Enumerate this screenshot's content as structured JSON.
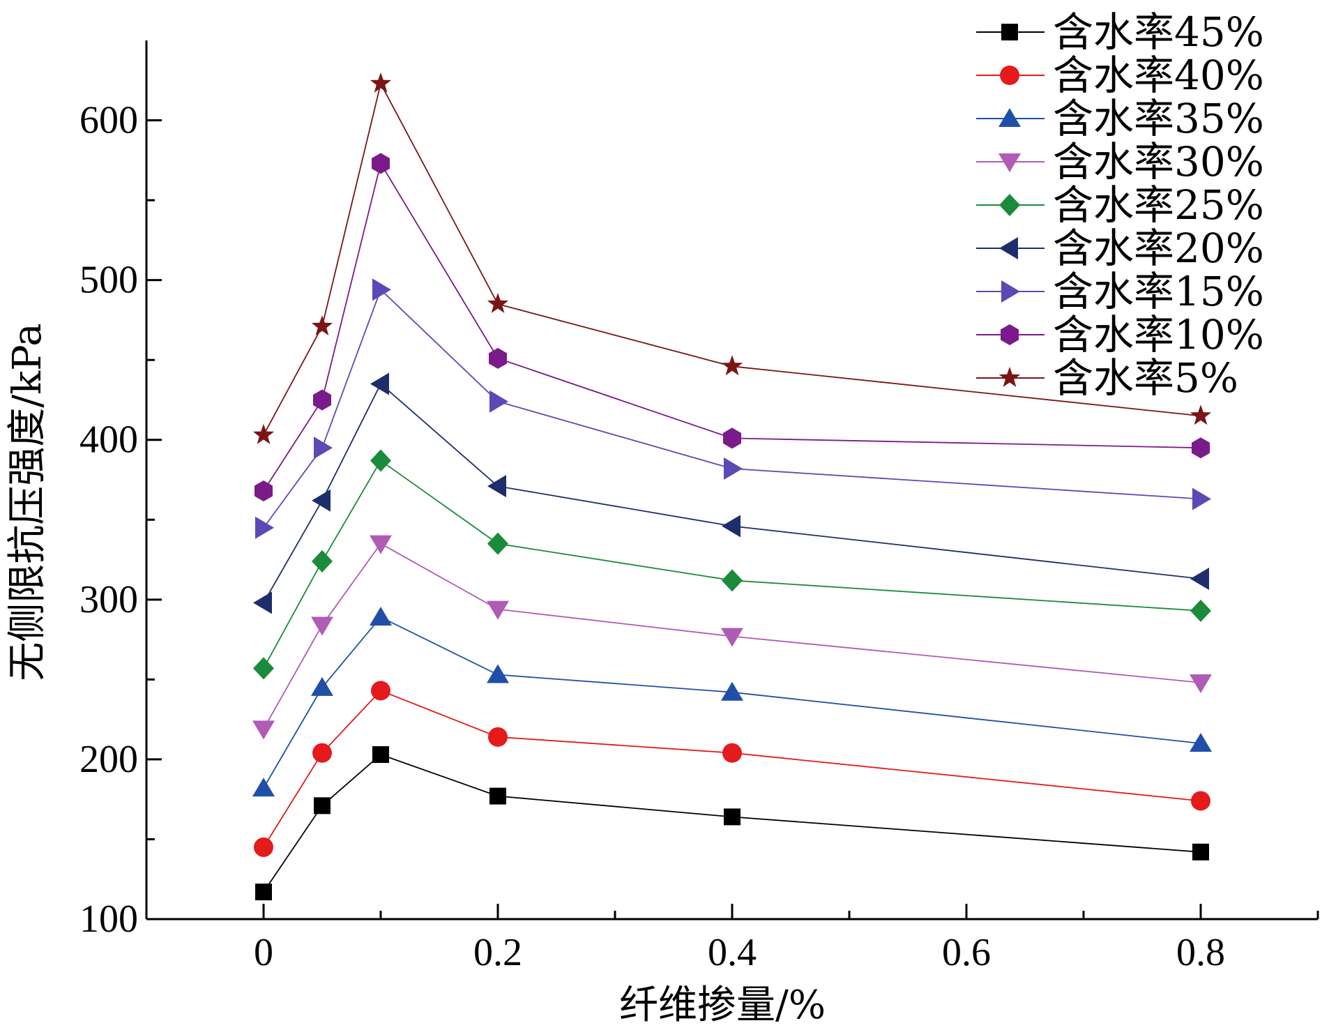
{
  "chart_data": {
    "type": "line",
    "xlabel": "纤维掺量/%",
    "ylabel": "无侧限抗压强度/kPa",
    "x": [
      0,
      0.05,
      0.1,
      0.2,
      0.4,
      0.8
    ],
    "xlim": [
      -0.1,
      0.9
    ],
    "ylim": [
      100,
      650
    ],
    "xticks": [
      0,
      0.2,
      0.4,
      0.6,
      0.8
    ],
    "xtick_labels": [
      "0",
      "0.2",
      "0.4",
      "0.6",
      "0.8"
    ],
    "yticks": [
      100,
      200,
      300,
      400,
      500,
      600
    ],
    "ytick_labels": [
      "100",
      "200",
      "300",
      "400",
      "500",
      "600"
    ],
    "legend_position": "top-right",
    "grid": false,
    "series": [
      {
        "name": "含水率45%",
        "color": "#000000",
        "marker": "square",
        "values": [
          117,
          171,
          203,
          177,
          164,
          142
        ]
      },
      {
        "name": "含水率40%",
        "color": "#e41a1c",
        "marker": "circle",
        "values": [
          145,
          204,
          243,
          214,
          204,
          174
        ]
      },
      {
        "name": "含水率35%",
        "color": "#1f4fa8",
        "marker": "triangle-up",
        "values": [
          182,
          245,
          289,
          253,
          242,
          210
        ]
      },
      {
        "name": "含水率30%",
        "color": "#b05bb5",
        "marker": "triangle-down",
        "values": [
          219,
          284,
          335,
          294,
          277,
          248
        ]
      },
      {
        "name": "含水率25%",
        "color": "#1a8b3a",
        "marker": "diamond",
        "values": [
          257,
          324,
          387,
          335,
          312,
          293
        ]
      },
      {
        "name": "含水率20%",
        "color": "#1e2d6b",
        "marker": "triangle-left",
        "values": [
          298,
          362,
          435,
          371,
          346,
          313
        ]
      },
      {
        "name": "含水率15%",
        "color": "#5a4ab5",
        "marker": "triangle-right",
        "values": [
          345,
          395,
          494,
          424,
          382,
          363
        ]
      },
      {
        "name": "含水率10%",
        "color": "#7b1a8a",
        "marker": "hexagon",
        "values": [
          368,
          425,
          573,
          451,
          401,
          395
        ]
      },
      {
        "name": "含水率5%",
        "color": "#7a1515",
        "marker": "star",
        "values": [
          403,
          471,
          623,
          485,
          446,
          415
        ]
      }
    ]
  }
}
